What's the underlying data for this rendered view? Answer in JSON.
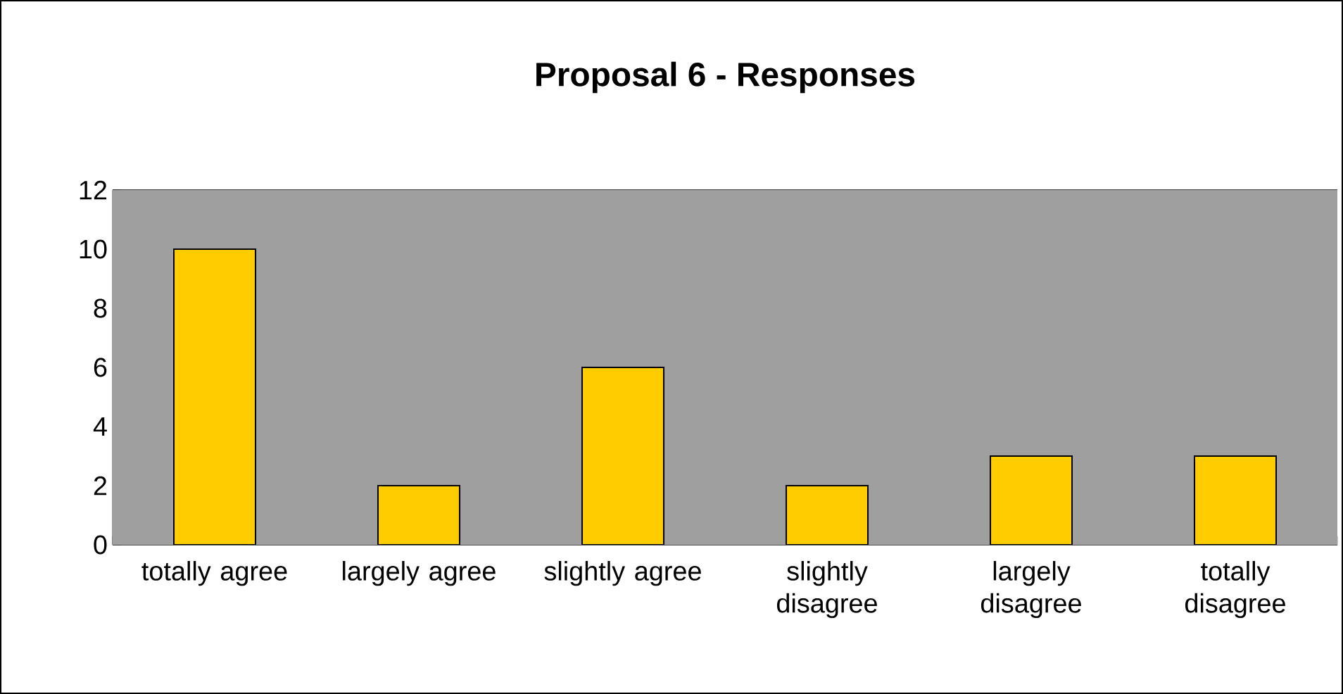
{
  "chart_data": {
    "type": "bar",
    "title": "Proposal 6 - Responses",
    "categories": [
      "totally agree",
      "largely agree",
      "slightly agree",
      "slightly disagree",
      "largely disagree",
      "totally disagree"
    ],
    "values": [
      10,
      2,
      6,
      2,
      3,
      3
    ],
    "color": "#ffcc00",
    "ylim": [
      0,
      12
    ],
    "yticks": [
      0,
      2,
      4,
      6,
      8,
      10,
      12
    ],
    "grid": "y"
  }
}
